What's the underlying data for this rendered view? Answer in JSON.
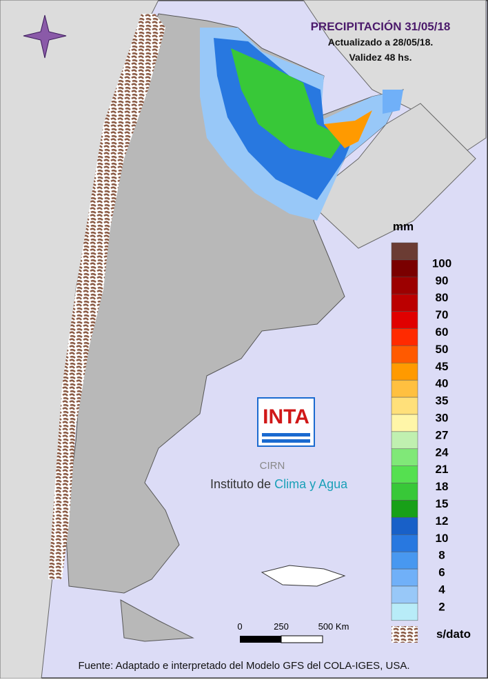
{
  "header": {
    "title": "PRECIPITACIÓN 31/05/18",
    "updated": "Actualizado a 28/05/18.",
    "validity": "Validez 48 hs."
  },
  "legend": {
    "unit": "mm",
    "top_color": "#6b3c33",
    "items": [
      {
        "label": "100",
        "color": "#7a0000"
      },
      {
        "label": "90",
        "color": "#9c0000"
      },
      {
        "label": "80",
        "color": "#bb0000"
      },
      {
        "label": "70",
        "color": "#e00000"
      },
      {
        "label": "60",
        "color": "#ff2a00"
      },
      {
        "label": "50",
        "color": "#ff5a00"
      },
      {
        "label": "45",
        "color": "#ff9a00"
      },
      {
        "label": "40",
        "color": "#ffc040"
      },
      {
        "label": "35",
        "color": "#ffe07a"
      },
      {
        "label": "30",
        "color": "#fff6a8"
      },
      {
        "label": "27",
        "color": "#c0f0b0"
      },
      {
        "label": "24",
        "color": "#80e878"
      },
      {
        "label": "21",
        "color": "#55e050"
      },
      {
        "label": "18",
        "color": "#38c838"
      },
      {
        "label": "15",
        "color": "#18a018"
      },
      {
        "label": "12",
        "color": "#1860c8"
      },
      {
        "label": "10",
        "color": "#2878e0"
      },
      {
        "label": "8",
        "color": "#4898f0"
      },
      {
        "label": "6",
        "color": "#70b0f8"
      },
      {
        "label": "4",
        "color": "#98c8f8"
      },
      {
        "label": "2",
        "color": "#b8ecf8"
      }
    ],
    "no_data": "s/dato"
  },
  "scale_bar": {
    "labels": [
      "0",
      "250",
      "500 Km"
    ]
  },
  "logo": {
    "acronym": "INTA",
    "center": "CIRN",
    "name_plain": "Instituto de",
    "name_colored": "Clima y Agua"
  },
  "footer": {
    "source": "Fuente: Adaptado e interpretado del Modelo GFS del COLA-IGES, USA."
  }
}
